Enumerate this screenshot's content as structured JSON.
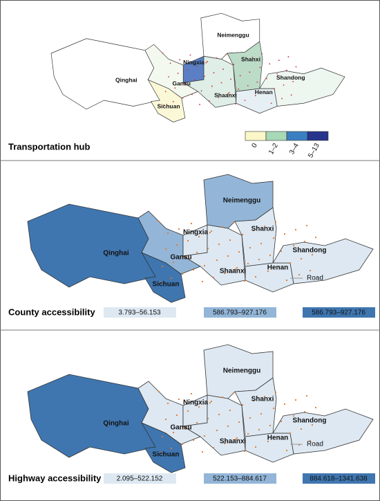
{
  "panels": [
    {
      "title": "Transportation hub",
      "provinces": [
        {
          "label": "Qinghai",
          "color": "#ffffff"
        },
        {
          "label": "Gansu",
          "color": "#f4f9ef"
        },
        {
          "label": "Sichuan",
          "color": "#fbf8d8"
        },
        {
          "label": "Ningxia",
          "color": "#5a7fc4"
        },
        {
          "label": "Neimenggu",
          "color": "#ffffff"
        },
        {
          "label": "Shaanxi",
          "color": "#dfeee6"
        },
        {
          "label": "Shanxi",
          "color": "#bcdcc8"
        },
        {
          "label": "Henan",
          "color": "#e6f0f4"
        },
        {
          "label": "Shandong",
          "color": "#eef6f0"
        }
      ],
      "legend": [
        {
          "label": "0",
          "color": "#fbf7c6"
        },
        {
          "label": "1–2",
          "color": "#a8d8b5"
        },
        {
          "label": "3–4",
          "color": "#3a7fc1"
        },
        {
          "label": "5–13",
          "color": "#27348b"
        }
      ]
    },
    {
      "title": "County accessibility",
      "road_label": "Road",
      "provinces": [
        {
          "label": "Qinghai",
          "color": "#3f76b0"
        },
        {
          "label": "Gansu",
          "color": "#93b6d8"
        },
        {
          "label": "Sichuan",
          "color": "#3f76b0"
        },
        {
          "label": "Ningxia",
          "color": "#dde8f2"
        },
        {
          "label": "Neimenggu",
          "color": "#93b6d8"
        },
        {
          "label": "Shaanxi",
          "color": "#dde8f2"
        },
        {
          "label": "Shanxi",
          "color": "#dde8f2"
        },
        {
          "label": "Henan",
          "color": "#dde8f2"
        },
        {
          "label": "Shandong",
          "color": "#dde8f2"
        }
      ],
      "legend": [
        {
          "label": "3.793–56.153",
          "color": "#dde8f2"
        },
        {
          "label": "586.793–927.176",
          "color": "#93b6d8"
        },
        {
          "label": "586.793–927.176",
          "color": "#3f76b0"
        }
      ]
    },
    {
      "title": "Highway accessibility",
      "road_label": "Road",
      "provinces": [
        {
          "label": "Qinghai",
          "color": "#3f76b0"
        },
        {
          "label": "Gansu",
          "color": "#dde8f2"
        },
        {
          "label": "Sichuan",
          "color": "#3f76b0"
        },
        {
          "label": "Ningxia",
          "color": "#dde8f2"
        },
        {
          "label": "Neimenggu",
          "color": "#dde8f2"
        },
        {
          "label": "Shaanxi",
          "color": "#dde8f2"
        },
        {
          "label": "Shanxi",
          "color": "#dde8f2"
        },
        {
          "label": "Henan",
          "color": "#dde8f2"
        },
        {
          "label": "Shandong",
          "color": "#dde8f2"
        }
      ],
      "legend": [
        {
          "label": "2.095–522.152",
          "color": "#dde8f2"
        },
        {
          "label": "522.153–884.617",
          "color": "#93b6d8"
        },
        {
          "label": "884.618–1341.638",
          "color": "#3f76b0"
        }
      ]
    }
  ]
}
